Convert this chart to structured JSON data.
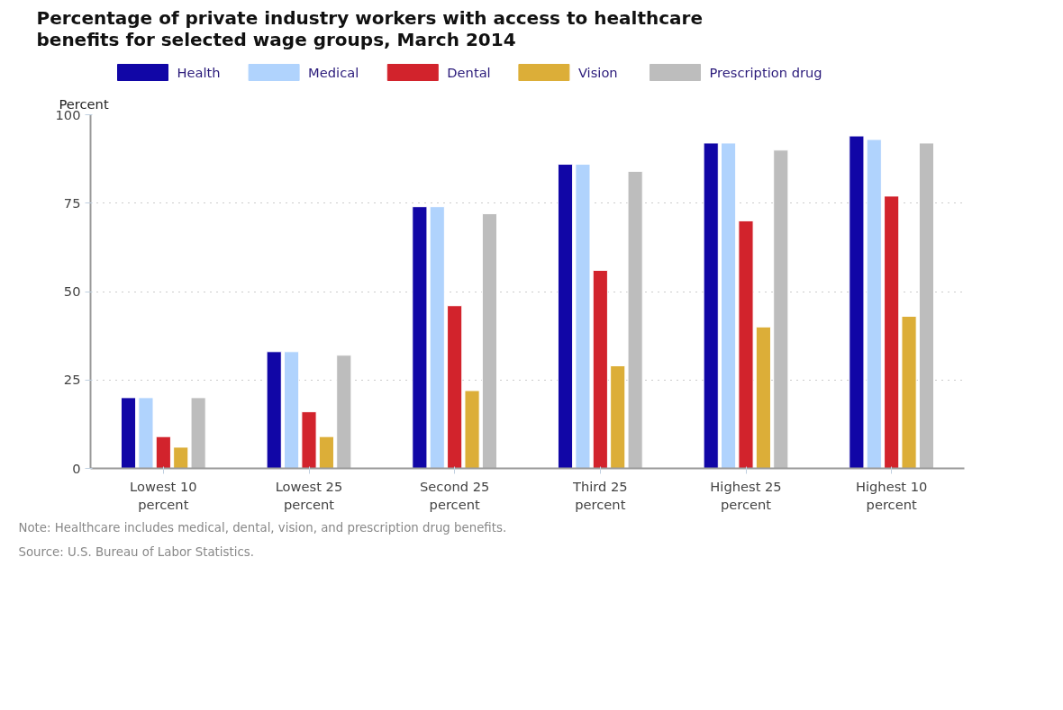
{
  "chart_data": {
    "type": "bar",
    "title": "Percentage of private industry workers with access to healthcare benefits for selected wage groups, March 2014",
    "ylabel": "Percent",
    "categories": [
      "Lowest 10 percent",
      "Lowest 25 percent",
      "Second 25 percent",
      "Third 25 percent",
      "Highest 25 percent",
      "Highest 10 percent"
    ],
    "series": [
      {
        "name": "Health",
        "color": "#1106a6",
        "values": [
          20,
          33,
          74,
          86,
          92,
          94
        ]
      },
      {
        "name": "Medical",
        "color": "#b0d3fd",
        "values": [
          20,
          33,
          74,
          86,
          92,
          93
        ]
      },
      {
        "name": "Dental",
        "color": "#d2232c",
        "values": [
          9,
          16,
          46,
          56,
          70,
          77
        ]
      },
      {
        "name": "Vision",
        "color": "#dcae38",
        "values": [
          6,
          9,
          22,
          29,
          40,
          43
        ]
      },
      {
        "name": "Prescription drug",
        "color": "#bdbdbd",
        "values": [
          20,
          32,
          72,
          84,
          90,
          92
        ]
      }
    ],
    "ylim": [
      0,
      100
    ],
    "yticks": [
      0,
      25,
      50,
      75,
      100
    ],
    "grid": "y",
    "legend": "top",
    "annotations": [
      "Note: Healthcare includes medical, dental, vision, and prescription drug benefits.",
      "Source: U.S. Bureau of Labor Statistics."
    ]
  }
}
